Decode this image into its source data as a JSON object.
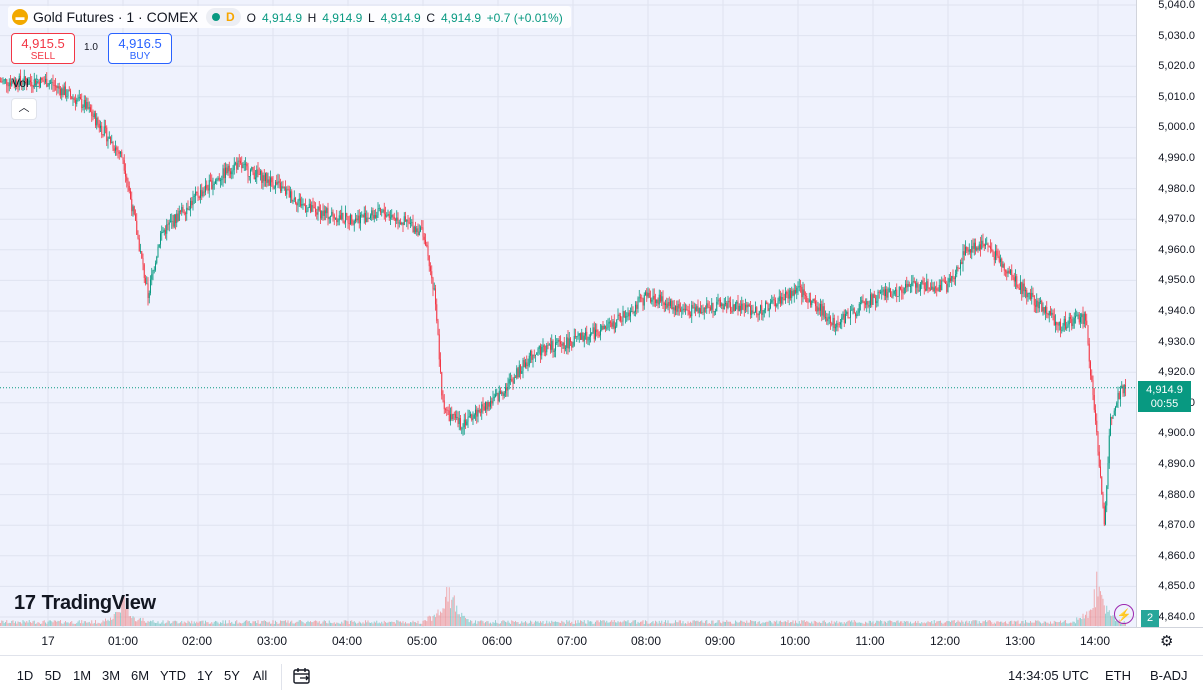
{
  "legend": {
    "symbol": "Gold Futures · 1 · COMEX",
    "interval_badge": "D",
    "ohlc": [
      {
        "k": "O",
        "v": "4,914.9"
      },
      {
        "k": "H",
        "v": "4,914.9"
      },
      {
        "k": "L",
        "v": "4,914.9"
      },
      {
        "k": "C",
        "v": "4,914.9"
      }
    ],
    "change": "+0.7 (+0.01%)"
  },
  "trade": {
    "sell_price": "4,915.5",
    "sell_label": "SELL",
    "spread": "1.0",
    "buy_price": "4,916.5",
    "buy_label": "BUY"
  },
  "volume_legend": {
    "label": "Vol",
    "value": "2"
  },
  "logo": {
    "text": "TradingView"
  },
  "price_axis": {
    "labels": [
      "5,040.0",
      "5,030.0",
      "5,020.0",
      "5,010.0",
      "5,000.0",
      "4,990.0",
      "4,980.0",
      "4,970.0",
      "4,960.0",
      "4,950.0",
      "4,940.0",
      "4,930.0",
      "4,920.0",
      "4,910.0",
      "4,900.0",
      "4,890.0",
      "4,880.0",
      "4,870.0",
      "4,860.0",
      "4,850.0",
      "4,840.0"
    ],
    "current_price": "4,914.9",
    "countdown": "00:55",
    "volume_badge": "2"
  },
  "time_axis": {
    "labels": [
      "17",
      "01:00",
      "02:00",
      "03:00",
      "04:00",
      "05:00",
      "06:00",
      "07:00",
      "08:00",
      "09:00",
      "10:00",
      "11:00",
      "12:00",
      "13:00",
      "14:00"
    ]
  },
  "bottom_toolbar": {
    "ranges": [
      "1D",
      "5D",
      "1M",
      "3M",
      "6M",
      "YTD",
      "1Y",
      "5Y",
      "All"
    ],
    "clock": "14:34:05 UTC",
    "session": "ETH",
    "adjust": "B-ADJ"
  },
  "colors": {
    "up": "#089981",
    "down": "#f23645",
    "background": "#eff2fd"
  },
  "chart_data": {
    "type": "candlestick",
    "y_range": [
      4836,
      5042
    ],
    "current_price": 4914.9,
    "close_series": {
      "x": [
        "00:00",
        "00:30",
        "01:00",
        "01:10",
        "01:20",
        "01:30",
        "02:00",
        "02:30",
        "03:00",
        "03:30",
        "04:00",
        "04:30",
        "05:00",
        "05:10",
        "05:15",
        "05:20",
        "05:30",
        "06:00",
        "06:30",
        "07:00",
        "07:30",
        "08:00",
        "08:30",
        "09:00",
        "09:30",
        "10:00",
        "10:30",
        "11:00",
        "11:30",
        "12:00",
        "12:15",
        "12:30",
        "13:00",
        "13:30",
        "13:50",
        "14:00",
        "14:05",
        "14:10",
        "14:15",
        "14:20",
        "14:34"
      ],
      "close": [
        5015,
        5007,
        4990,
        4968,
        4945,
        4965,
        4978,
        4988,
        4982,
        4973,
        4970,
        4972,
        4966,
        4944,
        4912,
        4906,
        4903,
        4912,
        4927,
        4930,
        4935,
        4945,
        4940,
        4942,
        4940,
        4947,
        4936,
        4944,
        4948,
        4948,
        4960,
        4962,
        4947,
        4935,
        4938,
        4895,
        4870,
        4905,
        4912,
        4914,
        4914.9
      ]
    },
    "volume_spikes": [
      {
        "time": "01:00",
        "level": "medium"
      },
      {
        "time": "05:20",
        "level": "high"
      },
      {
        "time": "14:00",
        "level": "high"
      }
    ]
  }
}
